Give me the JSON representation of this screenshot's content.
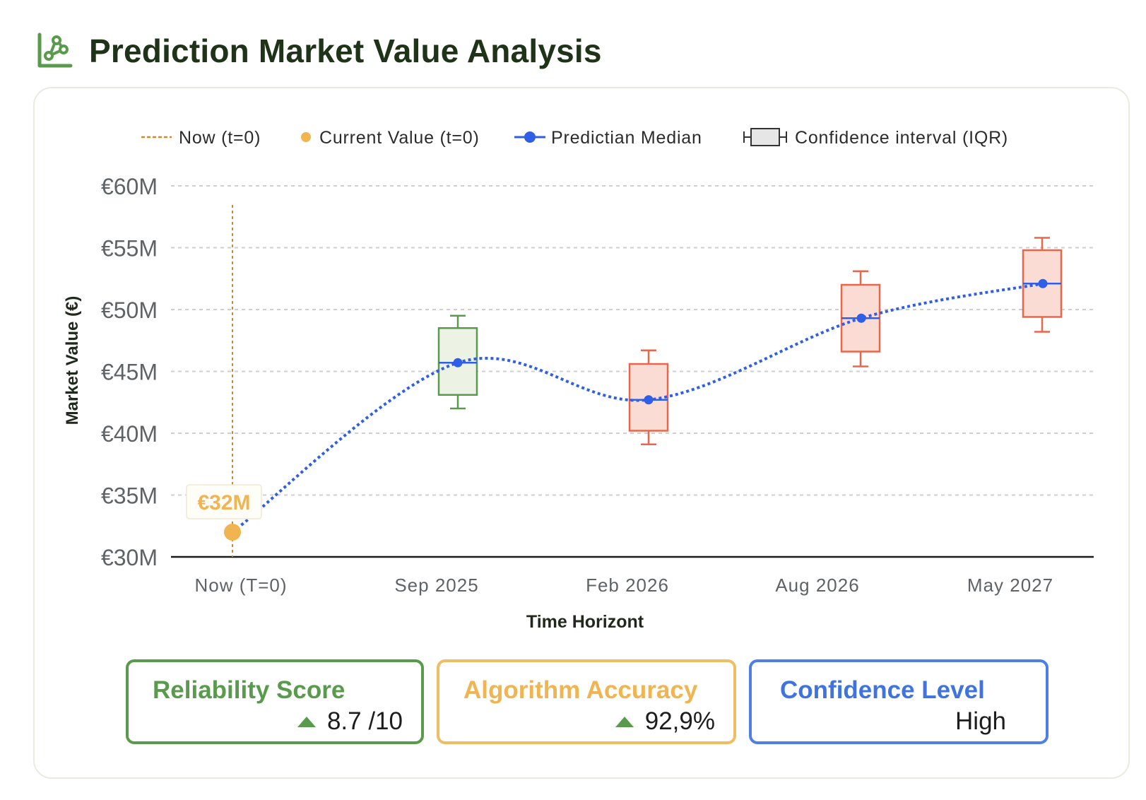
{
  "header": {
    "title": "Prediction Market Value Analysis",
    "icon": "chart-network-icon"
  },
  "chart_data": {
    "type": "box",
    "title": "Prediction Market Value Analysis",
    "xlabel": "Time Horizont",
    "ylabel": "Market Value (€)",
    "ylim": [
      30,
      60
    ],
    "yticks": [
      30,
      35,
      40,
      45,
      50,
      55,
      60
    ],
    "ytick_labels": [
      "€30M",
      "€35M",
      "€40M",
      "€45M",
      "€50M",
      "€55M",
      "€60M"
    ],
    "categories": [
      "Now (T=0)",
      "Sep 2025",
      "Feb 2026",
      "Aug 2026",
      "May 2027"
    ],
    "legend": {
      "position": "top",
      "items": [
        {
          "label": "Now (t=0)",
          "kind": "vline",
          "color": "#c98a3a"
        },
        {
          "label": "Current Value (t=0)",
          "kind": "dot",
          "color": "#f0b451"
        },
        {
          "label": "Predictian Median",
          "kind": "line-dot",
          "color": "#2f5fe6"
        },
        {
          "label": "Confidence interval (IQR)",
          "kind": "box",
          "color": "#333333"
        }
      ]
    },
    "current_value": {
      "value": 32,
      "label": "€32M",
      "color": "#f0b451"
    },
    "boxes": [
      {
        "category": "Sep 2025",
        "min": 42.0,
        "q1": 43.1,
        "median": 45.7,
        "q3": 48.5,
        "max": 49.5,
        "color": "#5a9a4c",
        "fill": "#edf3e4"
      },
      {
        "category": "Feb 2026",
        "min": 39.1,
        "q1": 40.2,
        "median": 42.7,
        "q3": 45.6,
        "max": 46.7,
        "color": "#e8674a",
        "fill": "#fadcd4"
      },
      {
        "category": "Aug 2026",
        "min": 45.4,
        "q1": 46.6,
        "median": 49.3,
        "q3": 52.0,
        "max": 53.1,
        "color": "#e8674a",
        "fill": "#fadcd4"
      },
      {
        "category": "May 2027",
        "min": 48.2,
        "q1": 49.4,
        "median": 52.1,
        "q3": 54.8,
        "max": 55.8,
        "color": "#e8674a",
        "fill": "#fadcd4"
      }
    ],
    "median_series": {
      "name": "Predictian Median",
      "x": [
        "Now (T=0)",
        "Sep 2025",
        "Feb 2026",
        "Aug 2026",
        "May 2027"
      ],
      "values": [
        32,
        45.7,
        42.7,
        49.3,
        52.1
      ]
    }
  },
  "kpis": [
    {
      "title": "Reliability Score",
      "value": "8.7 /10",
      "trend": "up"
    },
    {
      "title": "Algorithm Accuracy",
      "value": "92,9%",
      "trend": "up"
    },
    {
      "title": "Confidence Level",
      "value": "High"
    }
  ]
}
